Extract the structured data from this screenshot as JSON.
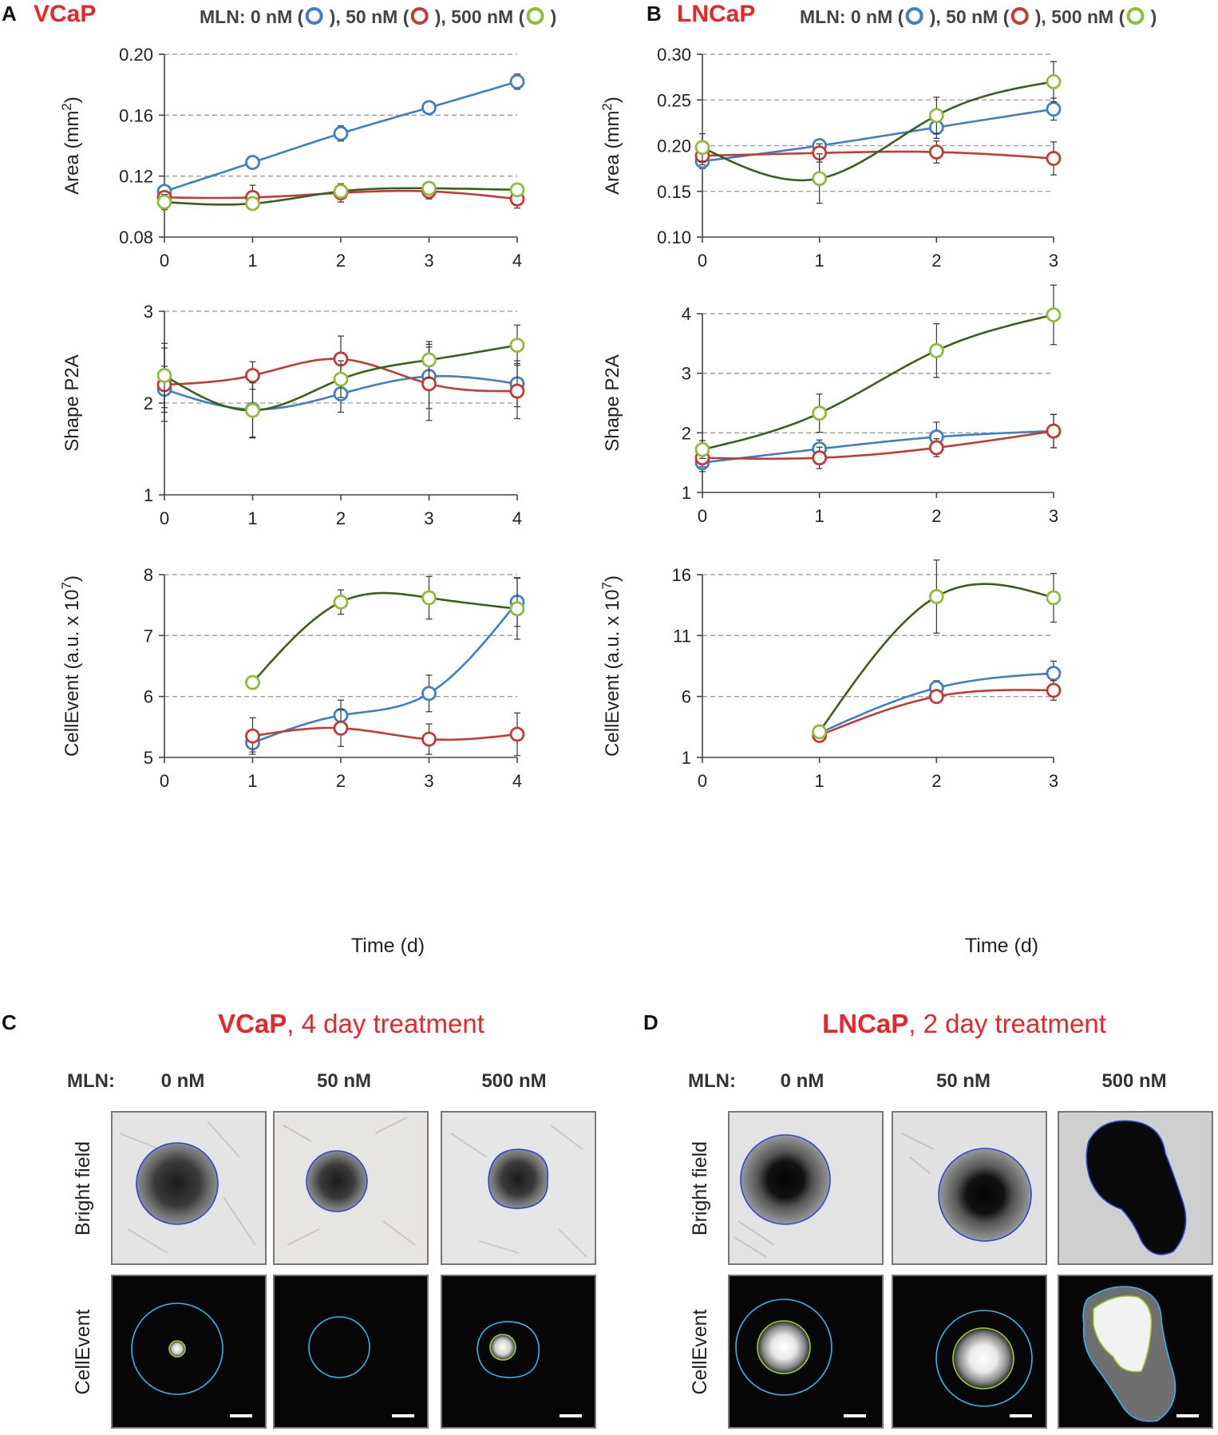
{
  "colors": {
    "red": "#e8262a",
    "blue": "#3f7fc4",
    "red_series": "#c33b32",
    "green_line": "#3a5f1f",
    "green_marker": "#8dbd3a",
    "grid": "#999999",
    "outline_blue": "#2b49c9",
    "outline_cyan": "#2fb8e8",
    "outline_green": "#9cd22a"
  },
  "panels": [
    {
      "letter": "A",
      "cell": "VCaP",
      "legend": {
        "prefix": "MLN: 0 nM (",
        "sep1": "), 50 nM (",
        "sep2": "), 500 nM (",
        "suffix": ")"
      }
    },
    {
      "letter": "B",
      "cell": "LNCaP",
      "legend": {
        "prefix": "MLN: 0 nM (",
        "sep1": "), 50 nM (",
        "sep2": "), 500 nM (",
        "suffix": ")"
      }
    },
    {
      "letter": "C",
      "cell": "VCaP",
      "subtitle": ", 4 day treatment",
      "mln_label": "MLN:",
      "conditions": [
        "0 nM",
        "50 nM",
        "500 nM"
      ],
      "rows": [
        "Bright field",
        "CellEvent"
      ]
    },
    {
      "letter": "D",
      "cell": "LNCaP",
      "subtitle": ", 2 day treatment",
      "mln_label": "MLN:",
      "conditions": [
        "0 nM",
        "50 nM",
        "500 nM"
      ],
      "rows": [
        "Bright field",
        "CellEvent"
      ]
    }
  ],
  "xlabel": "Time (d)",
  "chart_data": [
    {
      "id": "vcap_area",
      "type": "line",
      "xlabel": "",
      "ylabel": "Area (mm2)",
      "ylabel_main": "Area (mm",
      "ylabel_sup": "2",
      "ylabel_end": ")",
      "x": [
        0,
        1,
        2,
        3,
        4
      ],
      "xlim": [
        0,
        4
      ],
      "ylim": [
        0.08,
        0.2
      ],
      "yticks": [
        "0.08",
        "0.12",
        "0.16",
        "0.20"
      ],
      "xticks": [
        "0",
        "1",
        "2",
        "3",
        "4"
      ],
      "grid": [
        0.12,
        0.16,
        0.2
      ],
      "series": [
        {
          "name": "0 nM",
          "values": [
            0.11,
            0.129,
            0.148,
            0.165,
            0.182
          ],
          "errors": [
            0.003,
            0.003,
            0.005,
            0.004,
            0.005
          ]
        },
        {
          "name": "50 nM",
          "values": [
            0.106,
            0.106,
            0.109,
            0.11,
            0.105
          ],
          "errors": [
            0.004,
            0.008,
            0.006,
            0.005,
            0.006
          ]
        },
        {
          "name": "500 nM",
          "values": [
            0.103,
            0.102,
            0.11,
            0.112,
            0.111
          ],
          "errors": [
            0.005,
            0.004,
            0.004,
            0.004,
            0.003
          ]
        }
      ]
    },
    {
      "id": "vcap_shape",
      "type": "line",
      "xlabel": "",
      "ylabel": "Shape P2A",
      "ylabel_main": "Shape P2A",
      "ylabel_sup": "",
      "ylabel_end": "",
      "x": [
        0,
        1,
        2,
        3,
        4
      ],
      "xlim": [
        0,
        4
      ],
      "ylim": [
        1,
        3
      ],
      "yticks": [
        "1",
        "2",
        "3"
      ],
      "xticks": [
        "0",
        "1",
        "2",
        "3",
        "4"
      ],
      "grid": [
        2,
        3
      ],
      "series": [
        {
          "name": "0 nM",
          "values": [
            2.15,
            1.93,
            2.1,
            2.29,
            2.21
          ],
          "errors": [
            0.25,
            0.3,
            0.2,
            0.35,
            0.25
          ]
        },
        {
          "name": "50 nM",
          "values": [
            2.2,
            2.3,
            2.48,
            2.21,
            2.13
          ],
          "errors": [
            0.4,
            0.15,
            0.25,
            0.4,
            0.3
          ]
        },
        {
          "name": "500 nM",
          "values": [
            2.3,
            1.92,
            2.26,
            2.47,
            2.63
          ],
          "errors": [
            0.35,
            0.3,
            0.2,
            0.2,
            0.22
          ]
        }
      ]
    },
    {
      "id": "vcap_cellevent",
      "type": "line",
      "xlabel": "Time (d)",
      "ylabel": "CellEvent (a.u. x 107)",
      "ylabel_main": "CellEvent (a.u. x 10",
      "ylabel_sup": "7",
      "ylabel_end": ")",
      "x": [
        1,
        2,
        3,
        4
      ],
      "xlim": [
        0,
        4
      ],
      "ylim": [
        5,
        8
      ],
      "yticks": [
        "5",
        "6",
        "7",
        "8"
      ],
      "xticks": [
        "0",
        "1",
        "2",
        "3",
        "4"
      ],
      "grid": [
        6,
        7,
        8
      ],
      "series": [
        {
          "name": "0 nM",
          "values": [
            5.24,
            5.69,
            6.05,
            7.55
          ],
          "errors": [
            0.15,
            0.25,
            0.3,
            0.4
          ]
        },
        {
          "name": "50 nM",
          "values": [
            5.35,
            5.48,
            5.3,
            5.38
          ],
          "errors": [
            0.3,
            0.3,
            0.25,
            0.35
          ]
        },
        {
          "name": "500 nM",
          "values": [
            6.23,
            7.55,
            7.62,
            7.44
          ],
          "errors": [
            0.1,
            0.2,
            0.35,
            0.5
          ]
        }
      ]
    },
    {
      "id": "lncap_area",
      "type": "line",
      "xlabel": "",
      "ylabel": "Area (mm2)",
      "ylabel_main": "Area (mm",
      "ylabel_sup": "2",
      "ylabel_end": ")",
      "x": [
        0,
        1,
        2,
        3
      ],
      "xlim": [
        0,
        3
      ],
      "ylim": [
        0.1,
        0.3
      ],
      "yticks": [
        "0.10",
        "0.15",
        "0.20",
        "0.25",
        "0.30"
      ],
      "xticks": [
        "0",
        "1",
        "2",
        "3"
      ],
      "grid": [
        0.15,
        0.2,
        0.25,
        0.3
      ],
      "series": [
        {
          "name": "0 nM",
          "values": [
            0.183,
            0.2,
            0.22,
            0.24
          ],
          "errors": [
            0.008,
            0.006,
            0.012,
            0.012
          ]
        },
        {
          "name": "50 nM",
          "values": [
            0.189,
            0.192,
            0.193,
            0.186
          ],
          "errors": [
            0.01,
            0.01,
            0.012,
            0.018
          ]
        },
        {
          "name": "500 nM",
          "values": [
            0.198,
            0.164,
            0.233,
            0.27
          ],
          "errors": [
            0.015,
            0.027,
            0.02,
            0.022
          ]
        }
      ]
    },
    {
      "id": "lncap_shape",
      "type": "line",
      "xlabel": "",
      "ylabel": "Shape P2A",
      "ylabel_main": "Shape P2A",
      "ylabel_sup": "",
      "ylabel_end": "",
      "x": [
        0,
        1,
        2,
        3
      ],
      "xlim": [
        0,
        3
      ],
      "ylim": [
        1,
        4
      ],
      "yticks": [
        "1",
        "2",
        "3",
        "4"
      ],
      "xticks": [
        "0",
        "1",
        "2",
        "3"
      ],
      "grid": [
        2,
        3,
        4
      ],
      "series": [
        {
          "name": "0 nM",
          "values": [
            1.5,
            1.73,
            1.93,
            2.03
          ],
          "errors": [
            0.15,
            0.15,
            0.25,
            0.28
          ]
        },
        {
          "name": "50 nM",
          "values": [
            1.58,
            1.58,
            1.75,
            2.03
          ],
          "errors": [
            0.15,
            0.18,
            0.15,
            0.28
          ]
        },
        {
          "name": "500 nM",
          "values": [
            1.72,
            2.33,
            3.38,
            3.98
          ],
          "errors": [
            0.15,
            0.32,
            0.45,
            0.5
          ]
        }
      ]
    },
    {
      "id": "lncap_cellevent",
      "type": "line",
      "xlabel": "Time (d)",
      "ylabel": "CellEvent (a.u. x 107)",
      "ylabel_main": "CellEvent (a.u. x 10",
      "ylabel_sup": "7",
      "ylabel_end": ")",
      "x": [
        1,
        2,
        3
      ],
      "xlim": [
        0,
        3
      ],
      "ylim": [
        1,
        16
      ],
      "yticks": [
        "1",
        "6",
        "11",
        "16"
      ],
      "xticks": [
        "0",
        "1",
        "2",
        "3"
      ],
      "grid": [
        6,
        11,
        16
      ],
      "series": [
        {
          "name": "0 nM",
          "values": [
            3.0,
            6.7,
            7.9
          ],
          "errors": [
            0.3,
            0.6,
            1.0
          ]
        },
        {
          "name": "50 nM",
          "values": [
            2.8,
            6.0,
            6.5
          ],
          "errors": [
            0.3,
            0.5,
            0.8
          ]
        },
        {
          "name": "500 nM",
          "values": [
            3.1,
            14.2,
            14.1
          ],
          "errors": [
            0.3,
            3.0,
            2.0
          ]
        }
      ]
    }
  ]
}
